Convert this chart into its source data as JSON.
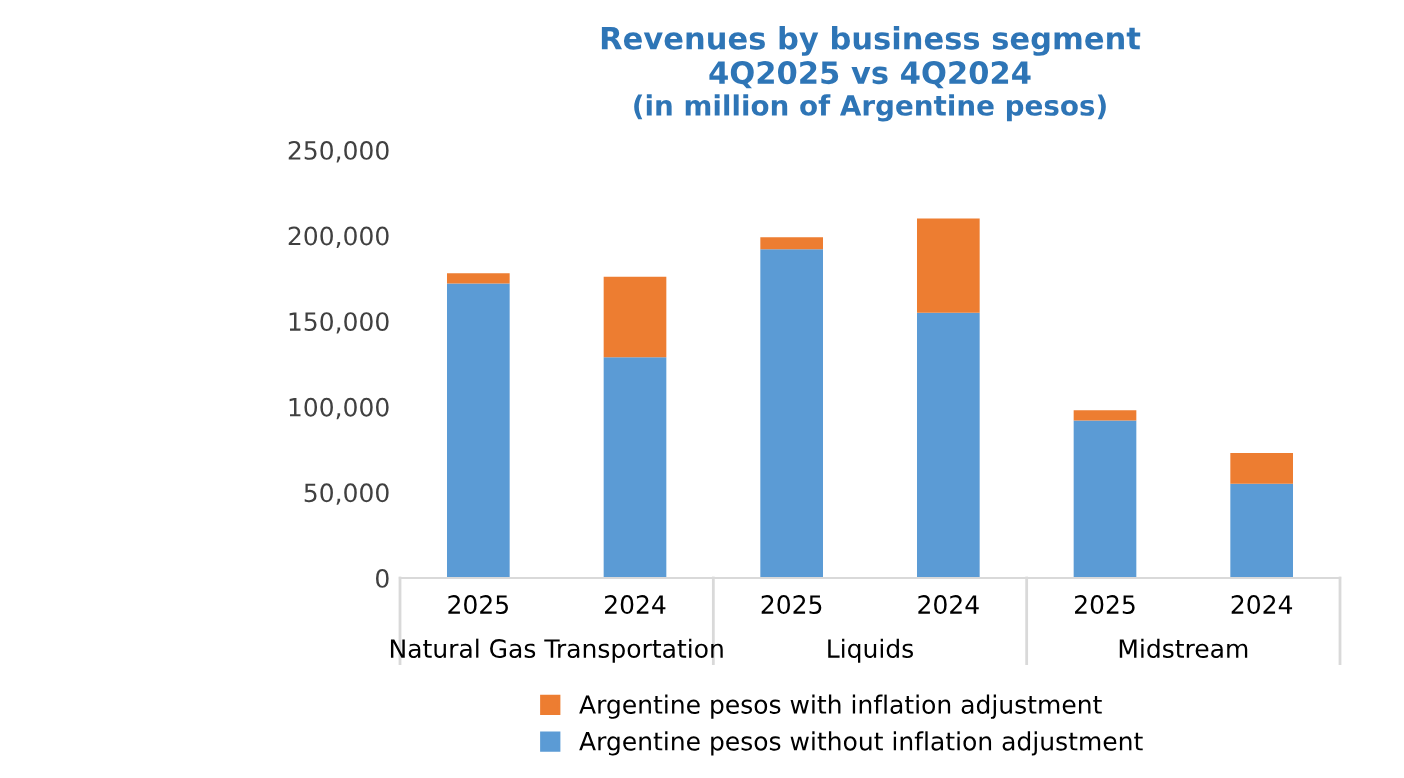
{
  "chart_data": {
    "type": "bar",
    "title": "Revenues by business segment\n4Q2025 vs 4Q2024",
    "subtitle": "(in million of Argentine pesos)",
    "categories": [
      "2025",
      "2024",
      "2025",
      "2024",
      "2025",
      "2024"
    ],
    "annotations": [
      "Natural Gas Transportation",
      "Liquids",
      "Midstream"
    ],
    "stacked": true,
    "series": [
      {
        "name": "Argentine pesos without inflation adjustment",
        "color": "#5b9bd5",
        "values": [
          172000,
          129000,
          192000,
          155000,
          92000,
          55000
        ]
      },
      {
        "name": "Argentine pesos with inflation adjustment",
        "color": "#ed7d31",
        "values": [
          6000,
          47000,
          7000,
          55000,
          6000,
          18000
        ]
      }
    ],
    "ylim": [
      0,
      250000
    ],
    "yticks": [
      {
        "value": 0,
        "label": "0"
      },
      {
        "value": 50000,
        "label": "50,000"
      },
      {
        "value": 100000,
        "label": "100,000"
      },
      {
        "value": 150000,
        "label": "150,000"
      },
      {
        "value": 200000,
        "label": "200,000"
      },
      {
        "value": 250000,
        "label": "250,000"
      }
    ],
    "grid": false,
    "legend": "bottom"
  }
}
